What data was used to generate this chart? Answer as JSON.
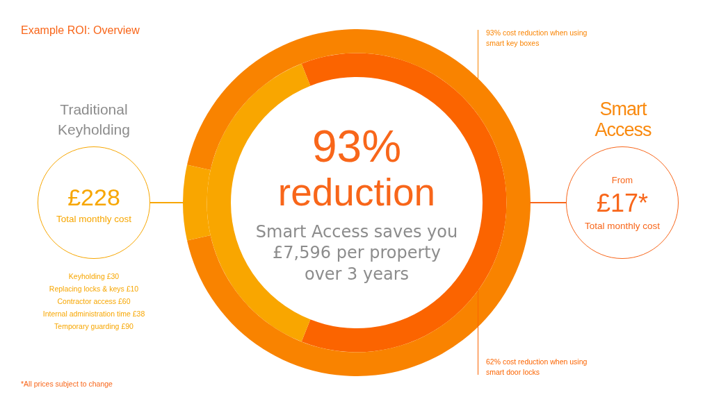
{
  "chart_data": {
    "type": "donut",
    "title": "Example ROI: Overview",
    "categories": [
      null,
      null
    ],
    "series": [
      {
        "name": "93% cost reduction when using smart key boxes",
        "values": [
          93,
          7
        ],
        "colors": [
          "#f98300",
          "#f9a600"
        ]
      },
      {
        "name": "62% cost reduction when using smart door locks",
        "values": [
          62,
          38
        ],
        "colors": [
          "#fb6400",
          "#f9a600"
        ]
      }
    ],
    "annotations": [
      "Traditional Keyholding",
      "£228",
      "Total monthly cost",
      "Keyholding £30",
      "Replacing locks & keys £10",
      "Contractor access £60",
      "Internal administration time £38",
      "Temporary guarding £90",
      "*All prices subject to change",
      "93%",
      "reduction",
      "Smart Access saves you £7,596 per property over 3 years",
      "Smart Access",
      "From",
      "£17*",
      "Total monthly cost"
    ]
  }
}
